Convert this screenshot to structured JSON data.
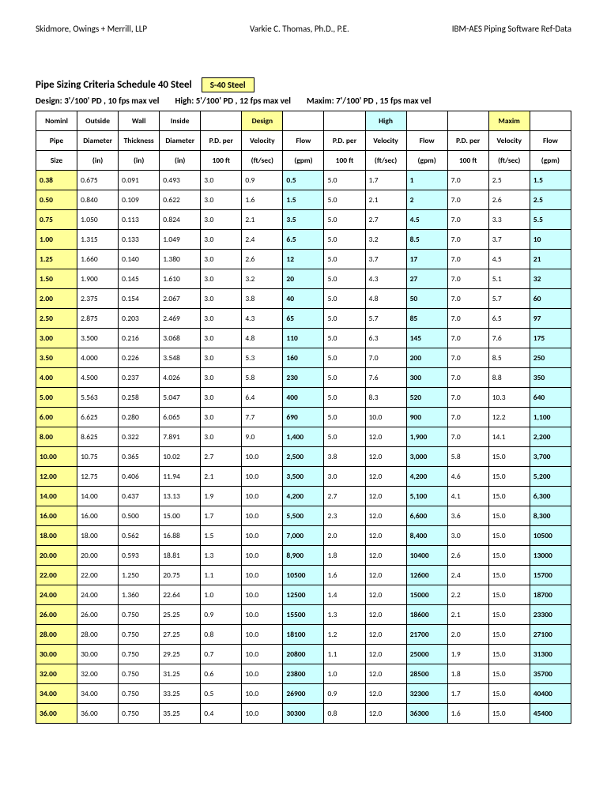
{
  "header": {
    "left": "Skidmore, Owings + Merrill, LLP",
    "center": "Varkie C. Thomas, Ph.D., P.E.",
    "right": "IBM-AES Piping Software Ref-Data"
  },
  "title": {
    "main": "Pipe Sizing Criteria    Schedule 40 Steel",
    "badge": "S-40 Steel"
  },
  "design": {
    "a": "Design:  3'/100' PD , 10 fps max vel",
    "b": "High: 5'/100' PD , 12 fps max vel",
    "c": "Maxim: 7'/100' PD , 15 fps max vel"
  },
  "columns": {
    "r1": [
      "Nominl",
      "Outside",
      "Wall",
      "Inside",
      "",
      "Design",
      "",
      "",
      "High",
      "",
      "",
      "Maxim",
      ""
    ],
    "r2": [
      "Pipe",
      "Diameter",
      "Thickness",
      "Diameter",
      "P.D. per",
      "Velocity",
      "Flow",
      "P.D. per",
      "Velocity",
      "Flow",
      "P.D. per",
      "Velocity",
      "Flow"
    ],
    "r3": [
      "Size",
      "(in)",
      "(in)",
      "(in)",
      "100 ft",
      "(ft/sec)",
      "(gpm)",
      "100 ft",
      "(ft/sec)",
      "(gpm)",
      "100 ft",
      "(ft/sec)",
      "(gpm)"
    ]
  },
  "rows": [
    [
      "0.38",
      "0.675",
      "0.091",
      "0.493",
      "3.0",
      "0.9",
      "0.5",
      "5.0",
      "1.7",
      "1",
      "7.0",
      "2.5",
      "1.5"
    ],
    [
      "0.50",
      "0.840",
      "0.109",
      "0.622",
      "3.0",
      "1.6",
      "1.5",
      "5.0",
      "2.1",
      "2",
      "7.0",
      "2.6",
      "2.5"
    ],
    [
      "0.75",
      "1.050",
      "0.113",
      "0.824",
      "3.0",
      "2.1",
      "3.5",
      "5.0",
      "2.7",
      "4.5",
      "7.0",
      "3.3",
      "5.5"
    ],
    [
      "1.00",
      "1.315",
      "0.133",
      "1.049",
      "3.0",
      "2.4",
      "6.5",
      "5.0",
      "3.2",
      "8.5",
      "7.0",
      "3.7",
      "10"
    ],
    [
      "1.25",
      "1.660",
      "0.140",
      "1.380",
      "3.0",
      "2.6",
      "12",
      "5.0",
      "3.7",
      "17",
      "7.0",
      "4.5",
      "21"
    ],
    [
      "1.50",
      "1.900",
      "0.145",
      "1.610",
      "3.0",
      "3.2",
      "20",
      "5.0",
      "4.3",
      "27",
      "7.0",
      "5.1",
      "32"
    ],
    [
      "2.00",
      "2.375",
      "0.154",
      "2.067",
      "3.0",
      "3.8",
      "40",
      "5.0",
      "4.8",
      "50",
      "7.0",
      "5.7",
      "60"
    ],
    [
      "2.50",
      "2.875",
      "0.203",
      "2.469",
      "3.0",
      "4.3",
      "65",
      "5.0",
      "5.7",
      "85",
      "7.0",
      "6.5",
      "97"
    ],
    [
      "3.00",
      "3.500",
      "0.216",
      "3.068",
      "3.0",
      "4.8",
      "110",
      "5.0",
      "6.3",
      "145",
      "7.0",
      "7.6",
      "175"
    ],
    [
      "3.50",
      "4.000",
      "0.226",
      "3.548",
      "3.0",
      "5.3",
      "160",
      "5.0",
      "7.0",
      "200",
      "7.0",
      "8.5",
      "250"
    ],
    [
      "4.00",
      "4.500",
      "0.237",
      "4.026",
      "3.0",
      "5.8",
      "230",
      "5.0",
      "7.6",
      "300",
      "7.0",
      "8.8",
      "350"
    ],
    [
      "5.00",
      "5.563",
      "0.258",
      "5.047",
      "3.0",
      "6.4",
      "400",
      "5.0",
      "8.3",
      "520",
      "7.0",
      "10.3",
      "640"
    ],
    [
      "6.00",
      "6.625",
      "0.280",
      "6.065",
      "3.0",
      "7.7",
      "690",
      "5.0",
      "10.0",
      "900",
      "7.0",
      "12.2",
      "1,100"
    ],
    [
      "8.00",
      "8.625",
      "0.322",
      "7.891",
      "3.0",
      "9.0",
      "1,400",
      "5.0",
      "12.0",
      "1,900",
      "7.0",
      "14.1",
      "2,200"
    ],
    [
      "10.00",
      "10.75",
      "0.365",
      "10.02",
      "2.7",
      "10.0",
      "2,500",
      "3.8",
      "12.0",
      "3,000",
      "5.8",
      "15.0",
      "3,700"
    ],
    [
      "12.00",
      "12.75",
      "0.406",
      "11.94",
      "2.1",
      "10.0",
      "3,500",
      "3.0",
      "12.0",
      "4,200",
      "4.6",
      "15.0",
      "5,200"
    ],
    [
      "14.00",
      "14.00",
      "0.437",
      "13.13",
      "1.9",
      "10.0",
      "4,200",
      "2.7",
      "12.0",
      "5,100",
      "4.1",
      "15.0",
      "6,300"
    ],
    [
      "16.00",
      "16.00",
      "0.500",
      "15.00",
      "1.7",
      "10.0",
      "5,500",
      "2.3",
      "12.0",
      "6,600",
      "3.6",
      "15.0",
      "8,300"
    ],
    [
      "18.00",
      "18.00",
      "0.562",
      "16.88",
      "1.5",
      "10.0",
      "7,000",
      "2.0",
      "12.0",
      "8,400",
      "3.0",
      "15.0",
      "10500"
    ],
    [
      "20.00",
      "20.00",
      "0.593",
      "18.81",
      "1.3",
      "10.0",
      "8,900",
      "1.8",
      "12.0",
      "10400",
      "2.6",
      "15.0",
      "13000"
    ],
    [
      "22.00",
      "22.00",
      "1.250",
      "20.75",
      "1.1",
      "10.0",
      "10500",
      "1.6",
      "12.0",
      "12600",
      "2.4",
      "15.0",
      "15700"
    ],
    [
      "24.00",
      "24.00",
      "1.360",
      "22.64",
      "1.0",
      "10.0",
      "12500",
      "1.4",
      "12.0",
      "15000",
      "2.2",
      "15.0",
      "18700"
    ],
    [
      "26.00",
      "26.00",
      "0.750",
      "25.25",
      "0.9",
      "10.0",
      "15500",
      "1.3",
      "12.0",
      "18600",
      "2.1",
      "15.0",
      "23300"
    ],
    [
      "28.00",
      "28.00",
      "0.750",
      "27.25",
      "0.8",
      "10.0",
      "18100",
      "1.2",
      "12.0",
      "21700",
      "2.0",
      "15.0",
      "27100"
    ],
    [
      "30.00",
      "30.00",
      "0.750",
      "29.25",
      "0.7",
      "10.0",
      "20800",
      "1.1",
      "12.0",
      "25000",
      "1.9",
      "15.0",
      "31300"
    ],
    [
      "32.00",
      "32.00",
      "0.750",
      "31.25",
      "0.6",
      "10.0",
      "23800",
      "1.0",
      "12.0",
      "28500",
      "1.8",
      "15.0",
      "35700"
    ],
    [
      "34.00",
      "34.00",
      "0.750",
      "33.25",
      "0.5",
      "10.0",
      "26900",
      "0.9",
      "12.0",
      "32300",
      "1.7",
      "15.0",
      "40400"
    ],
    [
      "36.00",
      "36.00",
      "0.750",
      "35.25",
      "0.4",
      "10.0",
      "30300",
      "0.8",
      "12.0",
      "36300",
      "1.6",
      "15.0",
      "45400"
    ]
  ],
  "style": {
    "yellow": "#ffff99",
    "cyan": "#ccffff",
    "border": "#000000",
    "font_size_body": 9.5,
    "font_size_title": 13,
    "highlighted_cols_yellow": [
      0
    ],
    "highlighted_cols_cyan": [
      6,
      9,
      12
    ],
    "highlighted_header_yellow": [
      5,
      11
    ],
    "highlighted_header_cyan": [
      8
    ]
  }
}
